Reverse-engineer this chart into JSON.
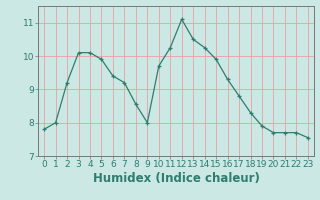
{
  "x": [
    0,
    1,
    2,
    3,
    4,
    5,
    6,
    7,
    8,
    9,
    10,
    11,
    12,
    13,
    14,
    15,
    16,
    17,
    18,
    19,
    20,
    21,
    22,
    23
  ],
  "y": [
    7.8,
    8.0,
    9.2,
    10.1,
    10.1,
    9.9,
    9.4,
    9.2,
    8.55,
    8.0,
    9.7,
    10.25,
    11.1,
    10.5,
    10.25,
    9.9,
    9.3,
    8.8,
    8.3,
    7.9,
    7.7,
    7.7,
    7.7,
    7.55
  ],
  "line_color": "#2e7d6e",
  "bg_color": "#cce8e4",
  "grid_color_h": "#e8a0a0",
  "grid_color_v": "#e8a0a0",
  "xlabel": "Humidex (Indice chaleur)",
  "ylim": [
    7,
    11.5
  ],
  "xlim": [
    -0.5,
    23.5
  ],
  "yticks": [
    7,
    8,
    9,
    10,
    11
  ],
  "xticks": [
    0,
    1,
    2,
    3,
    4,
    5,
    6,
    7,
    8,
    9,
    10,
    11,
    12,
    13,
    14,
    15,
    16,
    17,
    18,
    19,
    20,
    21,
    22,
    23
  ],
  "tick_label_fontsize": 6.5,
  "xlabel_fontsize": 8.5,
  "marker": "+"
}
